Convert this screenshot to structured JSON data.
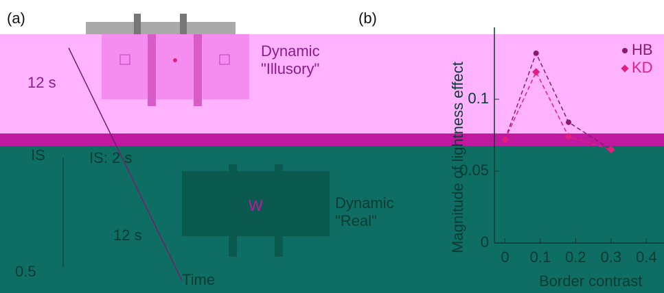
{
  "panel_a": {
    "label": "(a)",
    "top_caption": [
      "Dynamic",
      "\"Illusory\""
    ],
    "top_duration": "12 s",
    "is_label": "IS",
    "is_duration": "IS: 2 s",
    "bottom_caption": [
      "Dynamic",
      "\"Real\""
    ],
    "bottom_duration": "12 s",
    "time_label": "Time",
    "inset_tick": "0.5"
  },
  "chart_data": {
    "type": "line",
    "panel_label": "(b)",
    "y_label": "Magnitude of lightness effect",
    "x_label": "Border contrast",
    "x": [
      0,
      0.088,
      0.18,
      0.3
    ],
    "series": [
      {
        "name": "HB",
        "color": "#8b1a6b",
        "values": [
          0.072,
          0.132,
          0.084,
          0.065
        ]
      },
      {
        "name": "KD",
        "color": "#e0207f",
        "values": [
          0.072,
          0.119,
          0.074,
          0.065
        ]
      }
    ],
    "xlim": [
      -0.03,
      0.45
    ],
    "ylim": [
      0,
      0.15
    ],
    "xticks": [
      0,
      0.1,
      0.2,
      0.3,
      0.4
    ],
    "yticks": [
      0,
      0.05,
      0.1
    ],
    "legend": "upper right"
  }
}
